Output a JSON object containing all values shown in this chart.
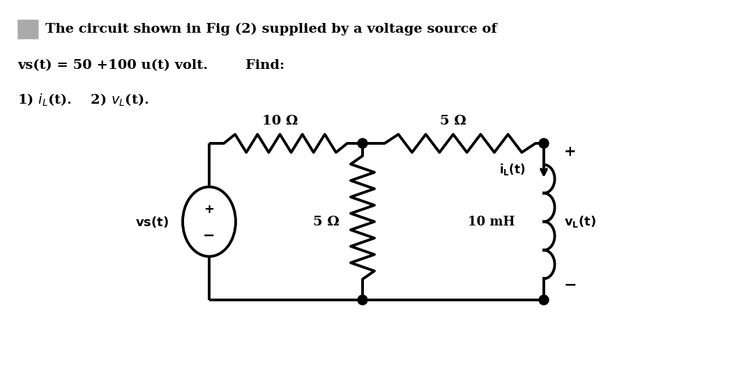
{
  "bg_color": "#ffffff",
  "title_text": "The circuit shown in Fig (2) supplied by a voltage source of",
  "line2_text": "vs(t) = 50 +100 u(t) volt.        Find:",
  "line3_left": "1) i",
  "line3_mid": "L",
  "line3_right": "(t).    2) v",
  "line3_L2": "L",
  "line3_end": "(t).",
  "res1_label": "10 Ω",
  "res2_label": "5 Ω",
  "res3_label": "5 Ω",
  "ind_label": "10 mH",
  "iL_label": "i",
  "iL_sub": "L",
  "iL_end": "(t)",
  "vL_label": "v",
  "vL_sub": "L",
  "vL_end": "(t)",
  "vs_label": "vs(t)",
  "lw": 2.8,
  "text_color": "#000000"
}
